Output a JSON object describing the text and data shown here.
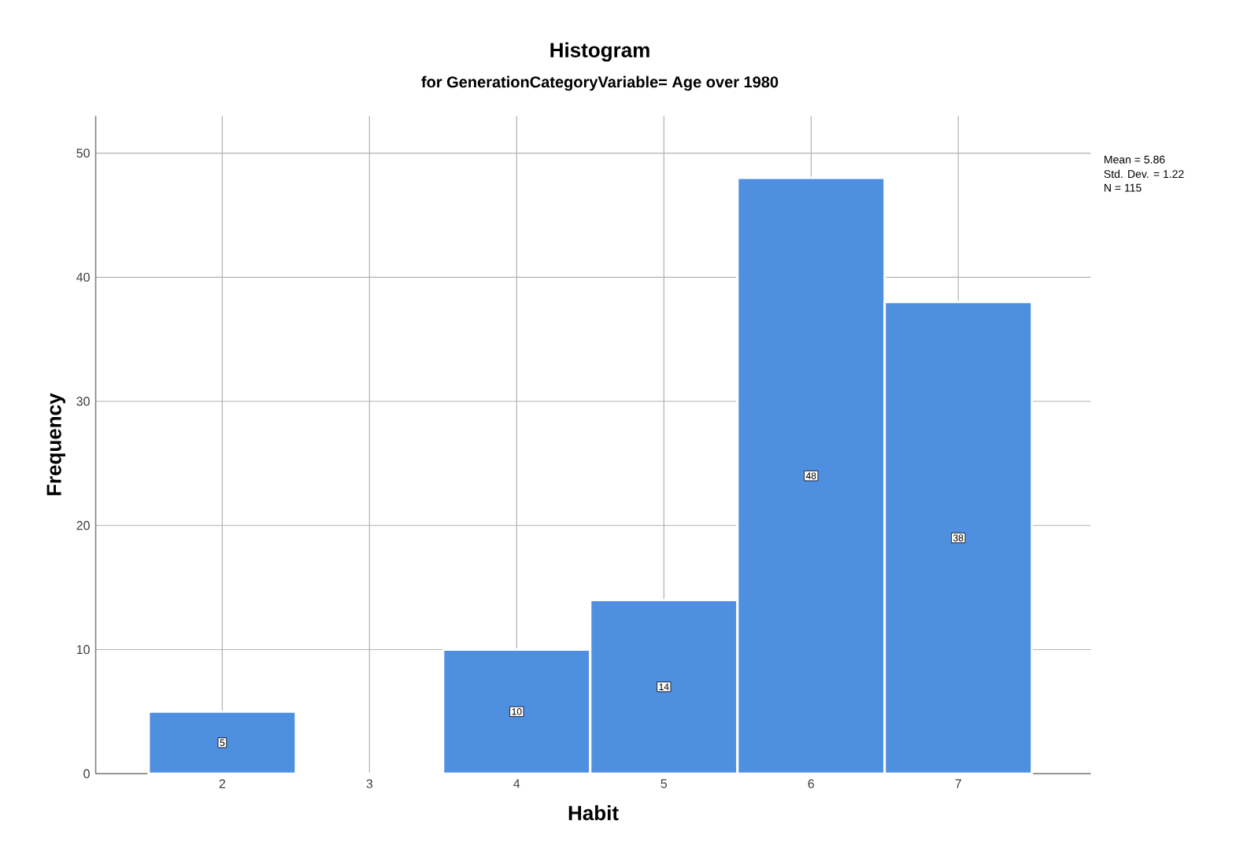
{
  "chart_data": {
    "type": "histogram",
    "title": "Histogram",
    "subtitle": "for GenerationCategoryVariable= Age over 1980",
    "xlabel": "Habit",
    "ylabel": "Frequency",
    "bins": [
      1.5,
      2.5,
      3.5,
      4.5,
      5.5,
      6.5,
      7.5
    ],
    "values": [
      5,
      0,
      10,
      14,
      48,
      38
    ],
    "value_labels": [
      "5",
      null,
      "10",
      "14",
      "48",
      "38"
    ],
    "color": "#4f8fe0",
    "xlim": [
      1.14,
      7.9
    ],
    "xticks": [
      2,
      3,
      4,
      5,
      6,
      7
    ],
    "ylim": [
      0,
      53
    ],
    "yticks": [
      0,
      10,
      20,
      30,
      40,
      50
    ],
    "grid": true,
    "annotations": [
      "Mean = 5.86",
      "Std. Dev. = 1.22",
      "N = 115"
    ]
  }
}
